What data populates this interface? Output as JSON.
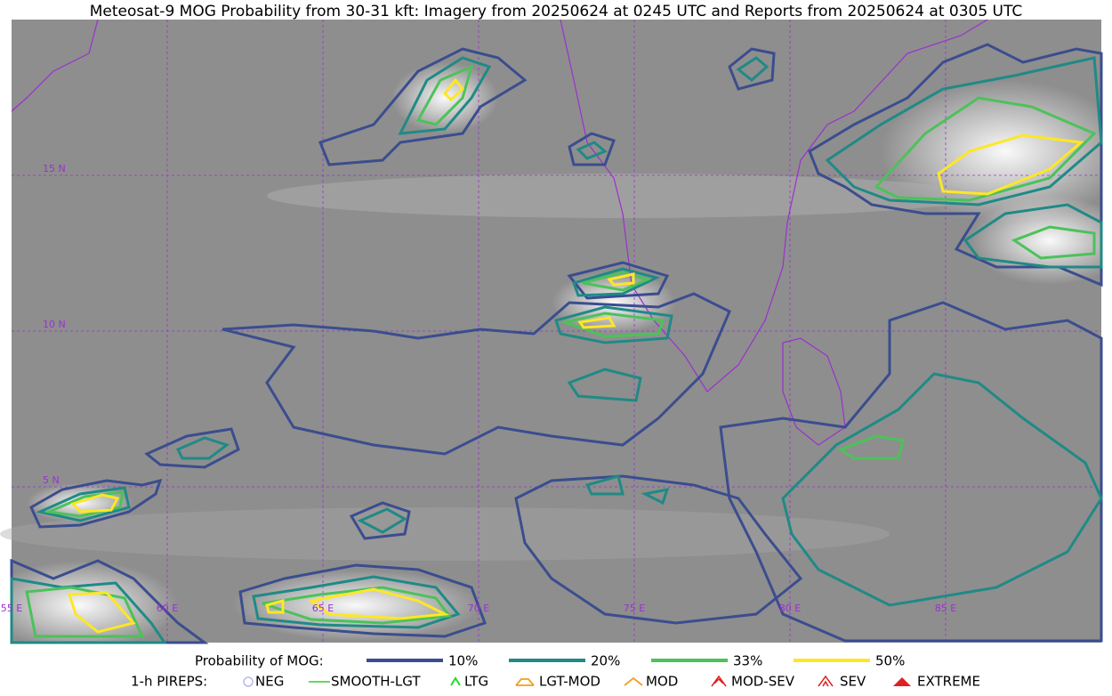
{
  "header": {
    "title": "Meteosat-9 MOG Probability from 30-31 kft: Imagery from 20250624 at 0245 UTC and Reports from 20250624 at 0305 UTC"
  },
  "map": {
    "lon_labels": [
      "55 E",
      "60 E",
      "65 E",
      "70 E",
      "75 E",
      "80 E",
      "85 E"
    ],
    "lat_labels": [
      "15 N",
      "10 N",
      "5 N"
    ]
  },
  "legend": {
    "probability": {
      "label": "Probability of MOG:",
      "items": [
        {
          "label": "10%",
          "color": "#3b4d8f"
        },
        {
          "label": "20%",
          "color": "#1f8a86"
        },
        {
          "label": "33%",
          "color": "#4cc25a"
        },
        {
          "label": "50%",
          "color": "#fde725"
        }
      ]
    },
    "pireps": {
      "label": "1-h PIREPS:",
      "items": [
        {
          "label": "NEG"
        },
        {
          "label": "SMOOTH-LGT"
        },
        {
          "label": "LTG"
        },
        {
          "label": "LGT-MOD"
        },
        {
          "label": "MOD"
        },
        {
          "label": "MOD-SEV"
        },
        {
          "label": "SEV"
        },
        {
          "label": "EXTREME"
        }
      ]
    }
  }
}
